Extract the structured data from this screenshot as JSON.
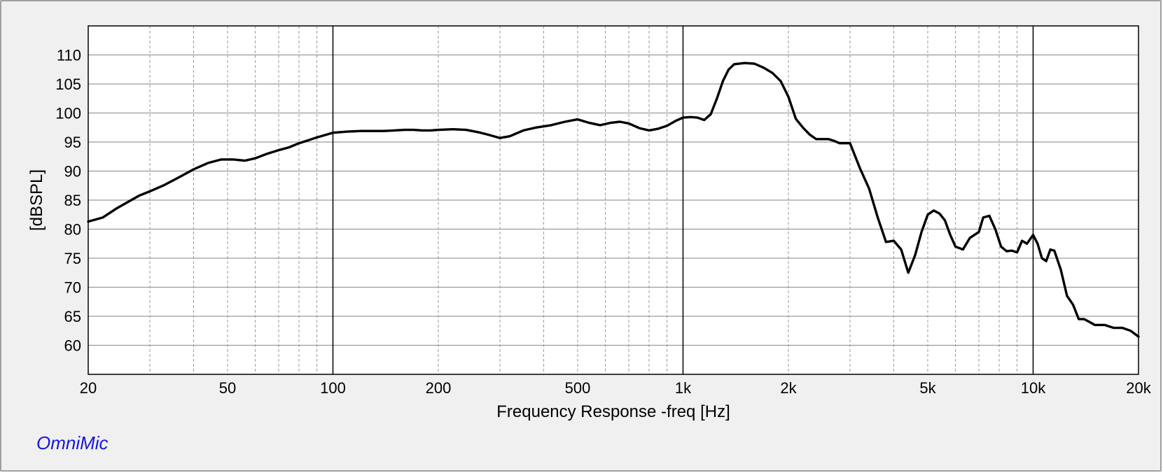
{
  "brand": {
    "label": "OmniMic",
    "color": "#1414e6"
  },
  "chart_data": {
    "type": "line",
    "title": "",
    "xlabel": "Frequency Response -freq [Hz]",
    "ylabel": "[dBSPL]",
    "xscale": "log",
    "xlim": [
      20,
      20000
    ],
    "ylim": [
      55,
      115
    ],
    "grid": true,
    "legend": "none",
    "x_ticks": [
      {
        "value": 20,
        "label": "20"
      },
      {
        "value": 50,
        "label": "50"
      },
      {
        "value": 100,
        "label": "100"
      },
      {
        "value": 200,
        "label": "200"
      },
      {
        "value": 500,
        "label": "500"
      },
      {
        "value": 1000,
        "label": "1k"
      },
      {
        "value": 2000,
        "label": "2k"
      },
      {
        "value": 5000,
        "label": "5k"
      },
      {
        "value": 10000,
        "label": "10k"
      },
      {
        "value": 20000,
        "label": "20k"
      }
    ],
    "y_ticks": [
      {
        "value": 60,
        "label": "60"
      },
      {
        "value": 65,
        "label": "65"
      },
      {
        "value": 70,
        "label": "70"
      },
      {
        "value": 75,
        "label": "75"
      },
      {
        "value": 80,
        "label": "80"
      },
      {
        "value": 85,
        "label": "85"
      },
      {
        "value": 90,
        "label": "90"
      },
      {
        "value": 95,
        "label": "95"
      },
      {
        "value": 100,
        "label": "100"
      },
      {
        "value": 105,
        "label": "105"
      },
      {
        "value": 110,
        "label": "110"
      }
    ],
    "series": [
      {
        "color": "#000000",
        "x": [
          20,
          22,
          24,
          26,
          28,
          30,
          33,
          36,
          40,
          44,
          48,
          52,
          56,
          60,
          65,
          70,
          75,
          80,
          85,
          90,
          95,
          100,
          110,
          120,
          130,
          140,
          150,
          160,
          170,
          180,
          190,
          200,
          220,
          240,
          260,
          280,
          300,
          320,
          350,
          380,
          420,
          460,
          500,
          540,
          580,
          620,
          660,
          700,
          750,
          800,
          850,
          900,
          950,
          1000,
          1050,
          1100,
          1150,
          1200,
          1250,
          1300,
          1350,
          1400,
          1500,
          1600,
          1700,
          1800,
          1900,
          2000,
          2100,
          2200,
          2300,
          2400,
          2500,
          2600,
          2700,
          2800,
          2900,
          3000,
          3200,
          3400,
          3600,
          3800,
          4000,
          4200,
          4400,
          4600,
          4800,
          5000,
          5200,
          5400,
          5600,
          5800,
          6000,
          6300,
          6600,
          7000,
          7200,
          7500,
          7800,
          8100,
          8400,
          8700,
          9000,
          9300,
          9600,
          10000,
          10300,
          10600,
          10900,
          11200,
          11500,
          12000,
          12500,
          13000,
          13500,
          14000,
          14500,
          15000,
          15500,
          16000,
          17000,
          18000,
          19000,
          20000
        ],
        "y": [
          81.3,
          82.0,
          83.5,
          84.7,
          85.8,
          86.5,
          87.6,
          88.8,
          90.3,
          91.4,
          92.0,
          92.0,
          91.8,
          92.2,
          93.0,
          93.6,
          94.1,
          94.8,
          95.3,
          95.8,
          96.2,
          96.6,
          96.8,
          96.9,
          96.9,
          96.9,
          97.0,
          97.1,
          97.1,
          97.0,
          97.0,
          97.1,
          97.2,
          97.1,
          96.7,
          96.2,
          95.7,
          96.0,
          97.0,
          97.5,
          97.9,
          98.5,
          98.9,
          98.3,
          97.9,
          98.3,
          98.5,
          98.2,
          97.4,
          97.0,
          97.3,
          97.8,
          98.6,
          99.2,
          99.3,
          99.2,
          98.8,
          99.8,
          102.5,
          105.5,
          107.5,
          108.4,
          108.6,
          108.5,
          107.8,
          106.9,
          105.5,
          102.8,
          99.0,
          97.5,
          96.3,
          95.5,
          95.5,
          95.5,
          95.2,
          94.8,
          94.8,
          94.8,
          90.5,
          87.0,
          82.0,
          77.8,
          78.0,
          76.5,
          72.5,
          75.5,
          79.5,
          82.5,
          83.2,
          82.7,
          81.5,
          79.0,
          77.0,
          76.5,
          78.5,
          79.5,
          82.0,
          82.3,
          80.0,
          77.0,
          76.2,
          76.3,
          76.0,
          78.0,
          77.5,
          79.0,
          77.5,
          75.0,
          74.5,
          76.5,
          76.3,
          73.0,
          68.5,
          67.0,
          64.5,
          64.5,
          64.0,
          63.5,
          63.5,
          63.5,
          63.0,
          63.0,
          62.5,
          61.5
        ]
      }
    ]
  }
}
